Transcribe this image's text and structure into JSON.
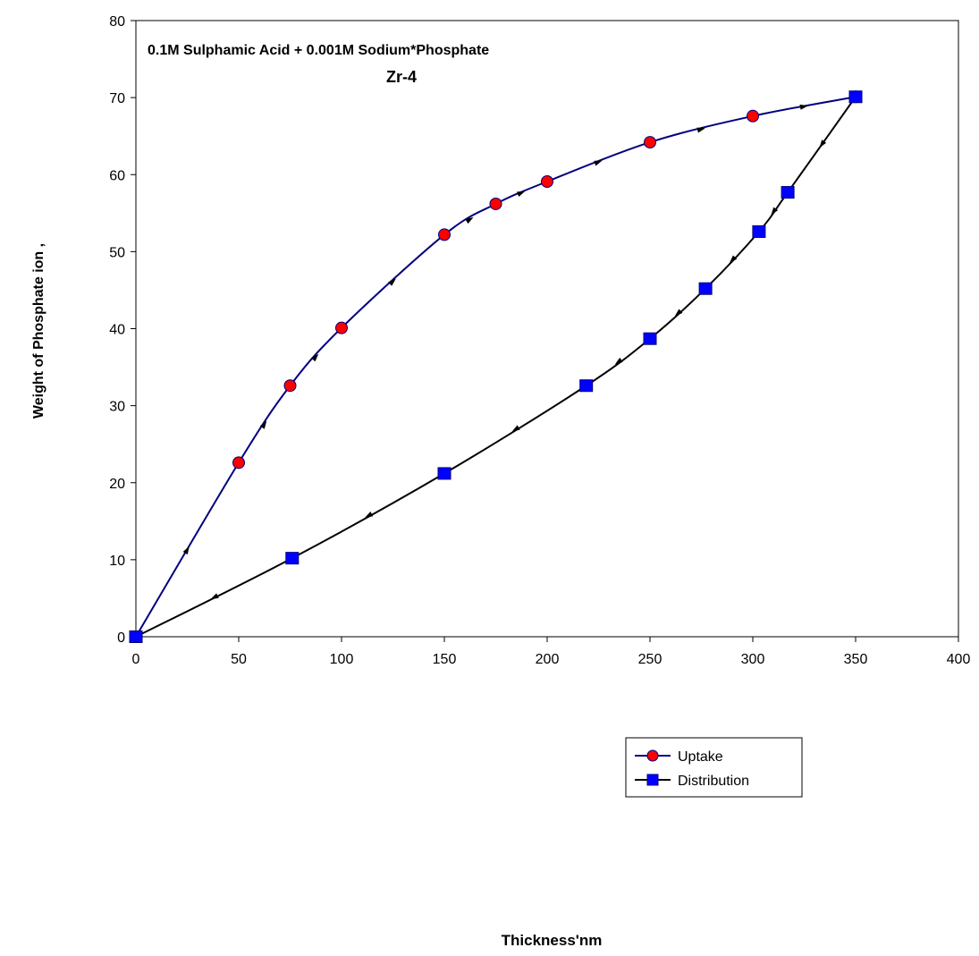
{
  "chart_data": {
    "type": "line",
    "title": "0.1M Sulphamic Acid + 0.001M Sodium*Phosphate",
    "subtitle": "Zr-4",
    "xlabel": "Thickness'nm",
    "ylabel": "Weight of Phosphate ion ,",
    "xlim": [
      0,
      400
    ],
    "ylim": [
      0,
      80
    ],
    "x_ticks": [
      0,
      50,
      100,
      150,
      200,
      250,
      300,
      350,
      400
    ],
    "y_ticks": [
      0,
      10,
      20,
      30,
      40,
      50,
      60,
      70,
      80
    ],
    "x_tick_labels": [
      "0",
      "50",
      "100",
      "150",
      "200",
      "250",
      "300",
      "350",
      "400"
    ],
    "y_tick_labels": [
      "0",
      "10",
      "20",
      "30",
      "40",
      "50",
      "60",
      "70",
      "80"
    ],
    "grid": false,
    "legend_position": "bottom-right",
    "series": [
      {
        "name": "Uptake",
        "color": "#000080",
        "marker": "circle",
        "marker_color": "#ff0000",
        "points": [
          [
            0,
            0
          ],
          [
            50,
            22.6
          ],
          [
            75,
            32.6
          ],
          [
            100,
            40.1
          ],
          [
            150,
            52.2
          ],
          [
            175,
            56.2
          ],
          [
            200,
            59.1
          ],
          [
            250,
            64.2
          ],
          [
            300,
            67.6
          ],
          [
            350,
            70.1
          ]
        ]
      },
      {
        "name": "Distribution",
        "color": "#000000",
        "marker": "square",
        "marker_color": "#0000ff",
        "points": [
          [
            0,
            0
          ],
          [
            76,
            10.2
          ],
          [
            150,
            21.2
          ],
          [
            219,
            32.6
          ],
          [
            250,
            38.7
          ],
          [
            277,
            45.2
          ],
          [
            303,
            52.6
          ],
          [
            317,
            57.7
          ],
          [
            350,
            70.1
          ]
        ]
      }
    ]
  }
}
